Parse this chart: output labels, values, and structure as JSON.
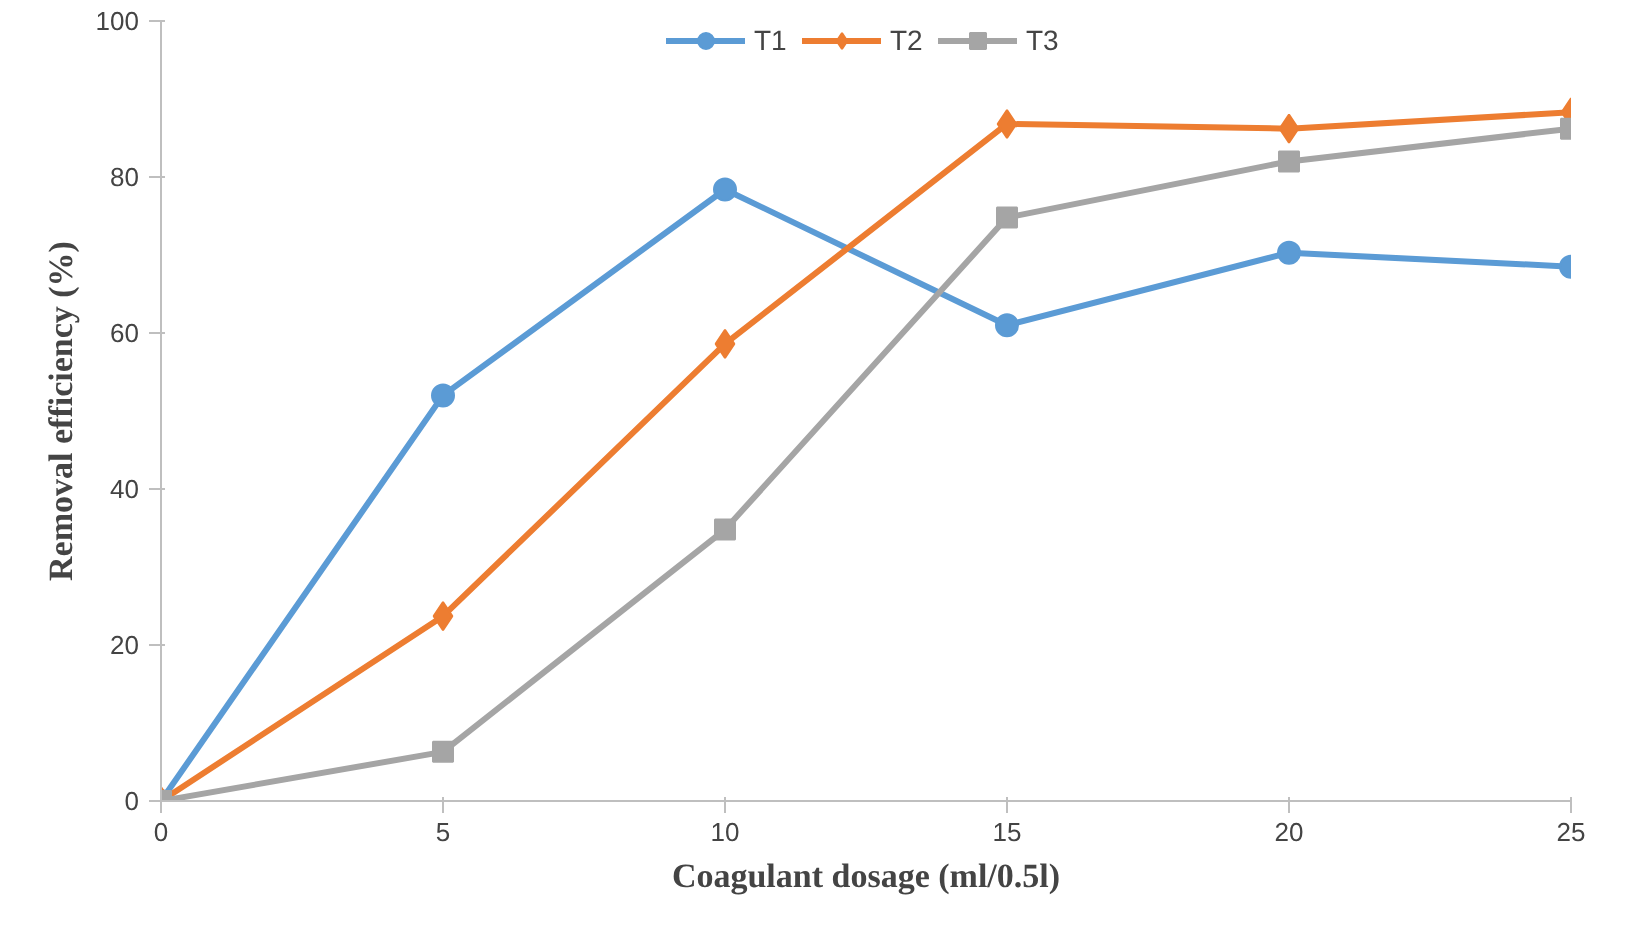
{
  "chart_data": {
    "type": "line",
    "xlabel": "Coagulant dosage (ml/0.5l)",
    "ylabel": "Removal efficiency (%)",
    "x": [
      0,
      5,
      10,
      15,
      20,
      25
    ],
    "series": [
      {
        "name": "T1",
        "color": "#5b9bd5",
        "marker": "circle",
        "values": [
          0,
          52,
          78.4,
          61,
          70.3,
          68.5
        ]
      },
      {
        "name": "T2",
        "color": "#ed7d31",
        "marker": "diamond",
        "values": [
          0,
          23.7,
          58.6,
          86.8,
          86.2,
          88.3
        ]
      },
      {
        "name": "T3",
        "color": "#a5a5a5",
        "marker": "square",
        "values": [
          0,
          6.3,
          34.8,
          74.8,
          82,
          86.2
        ]
      }
    ],
    "xlim": [
      0,
      25
    ],
    "xticks": [
      0,
      5,
      10,
      15,
      20,
      25
    ],
    "ylim": [
      0,
      100
    ],
    "yticks": [
      0,
      20,
      40,
      60,
      80,
      100
    ],
    "grid": false,
    "legend": "top",
    "line_style": "solid"
  }
}
